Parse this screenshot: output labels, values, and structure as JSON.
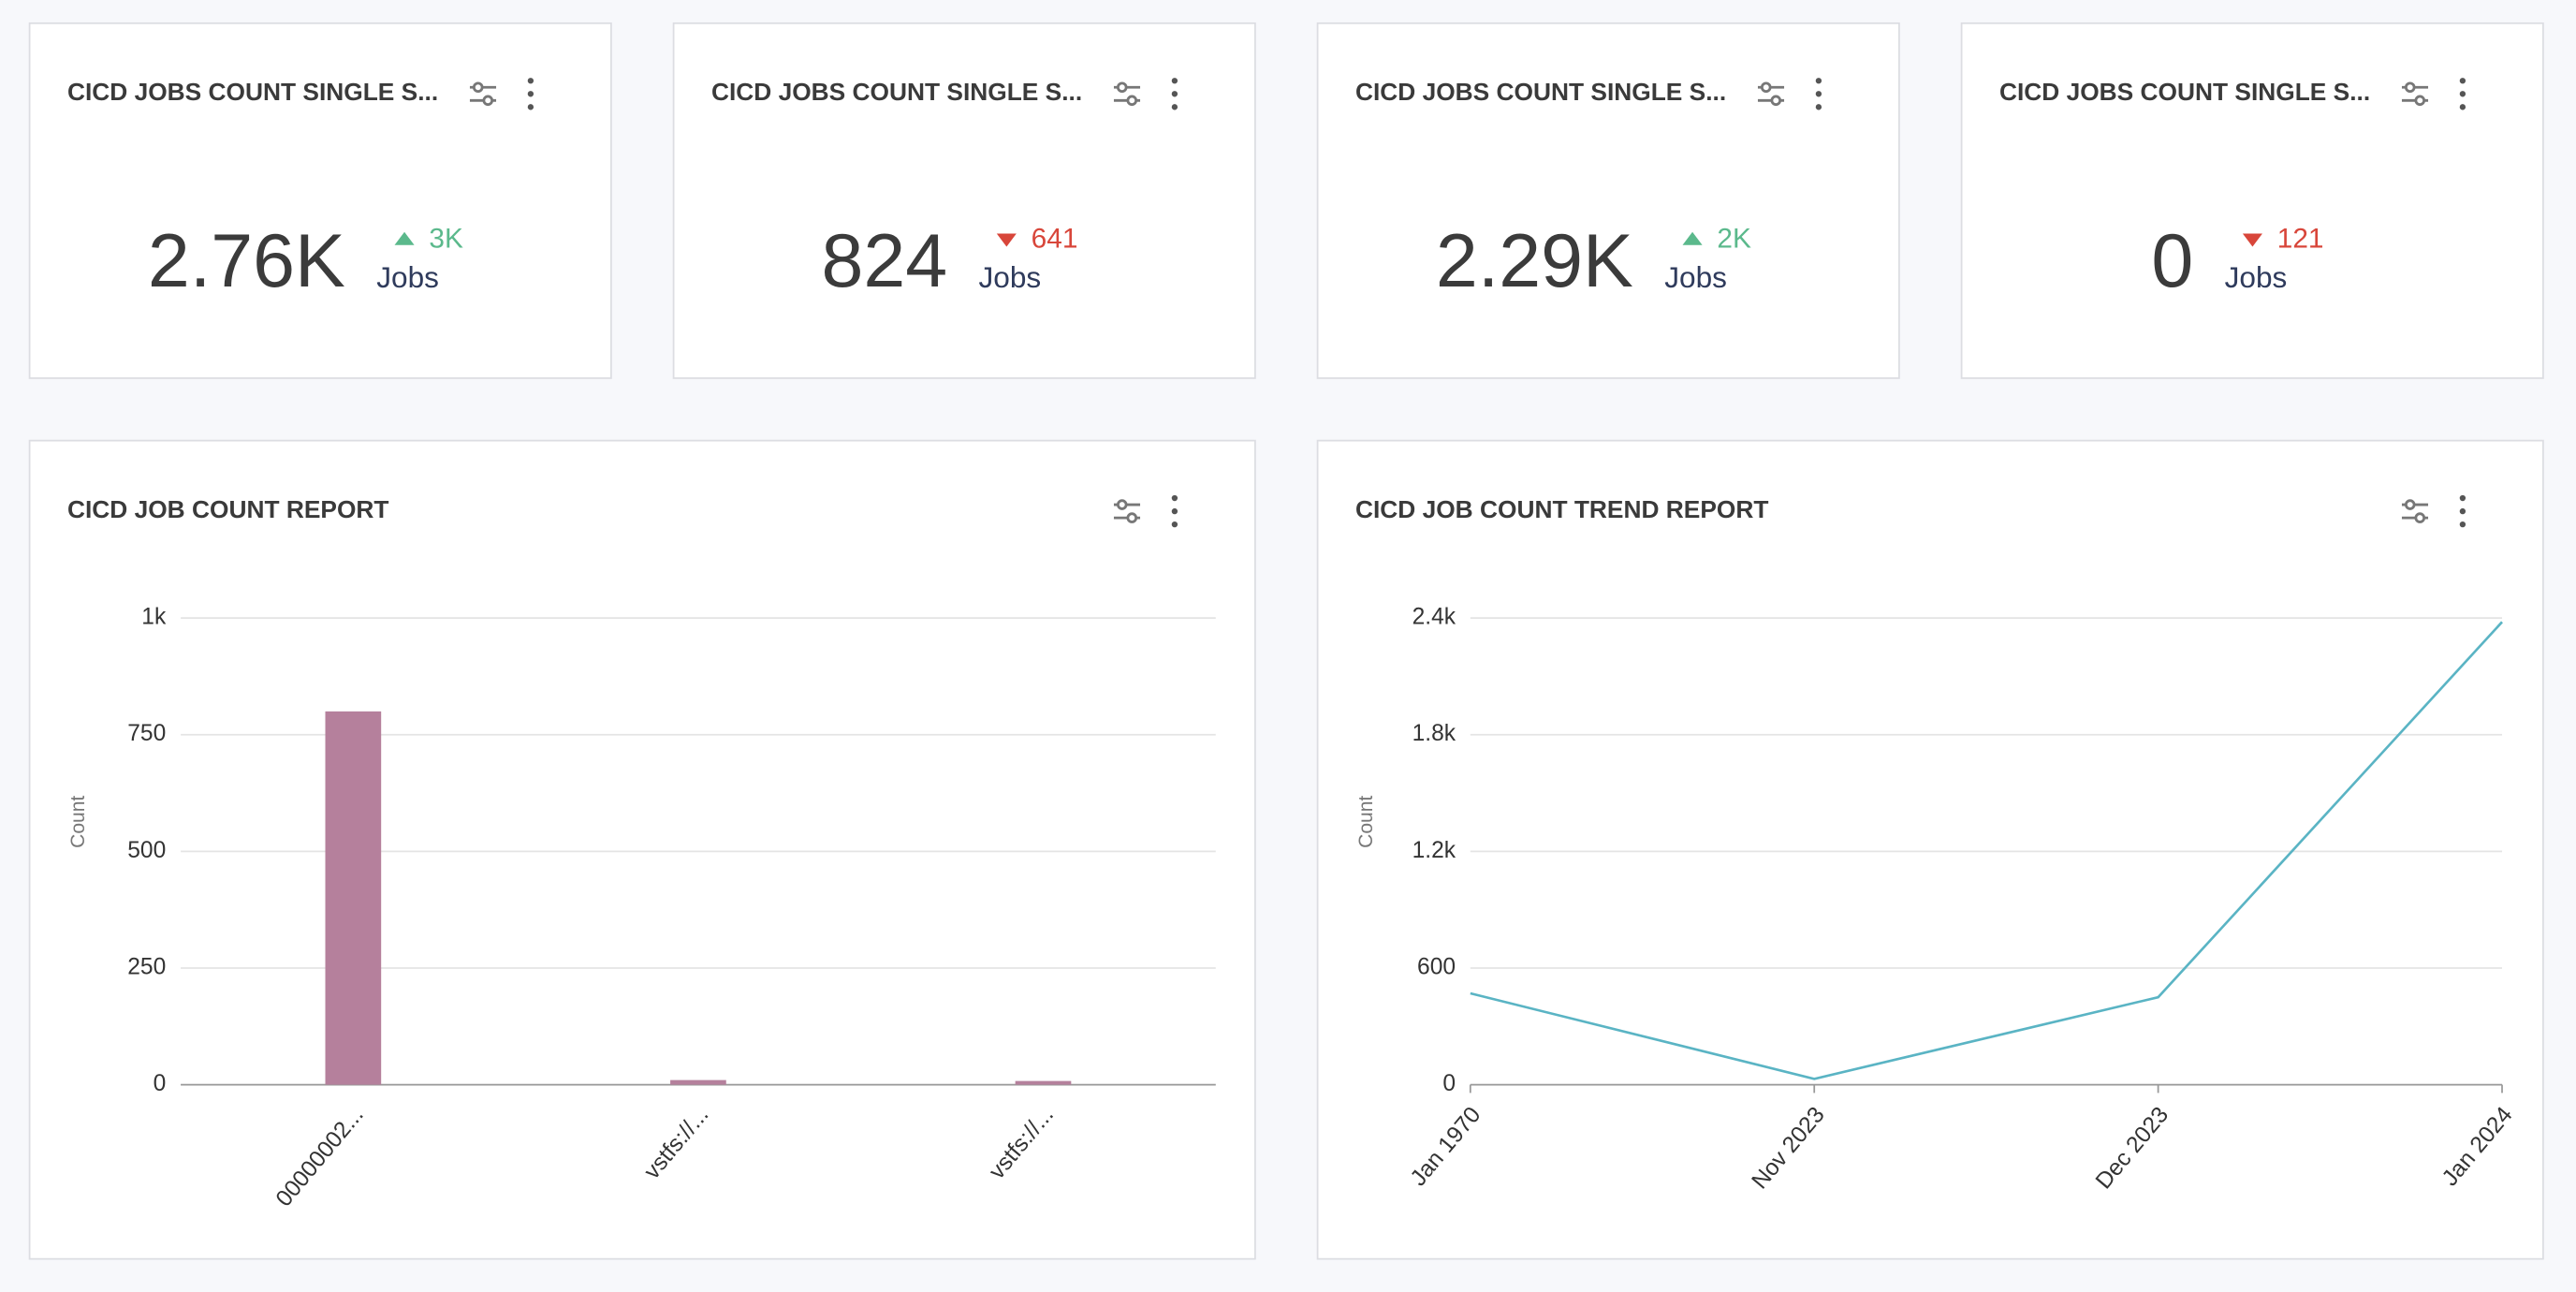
{
  "stat_cards": [
    {
      "title": "CICD JOBS COUNT SINGLE S...",
      "value": "2.76K",
      "delta": "3K",
      "trend": "up",
      "unit": "Jobs"
    },
    {
      "title": "CICD JOBS COUNT SINGLE S...",
      "value": "824",
      "delta": "641",
      "trend": "down",
      "unit": "Jobs"
    },
    {
      "title": "CICD JOBS COUNT SINGLE S...",
      "value": "2.29K",
      "delta": "2K",
      "trend": "up",
      "unit": "Jobs"
    },
    {
      "title": "CICD JOBS COUNT SINGLE S...",
      "value": "0",
      "delta": "121",
      "trend": "down",
      "unit": "Jobs"
    }
  ],
  "trend_colors": {
    "up": "#5bb98c",
    "down": "#d8463a"
  },
  "chart_data": [
    {
      "type": "bar",
      "title": "CICD JOB COUNT REPORT",
      "y_label": "Count",
      "categories": [
        "00000002...",
        "vstfs://...",
        "vstfs://..."
      ],
      "values": [
        800,
        10,
        8
      ],
      "color": "#b5809c",
      "ylim": [
        0,
        1000
      ],
      "yticks": [
        0,
        250,
        500,
        750,
        {
          "value": 1000,
          "label": "1k"
        }
      ],
      "grid": true
    },
    {
      "type": "line",
      "title": "CICD JOB COUNT TREND REPORT",
      "y_label": "Count",
      "categories": [
        "Jan 1970",
        "Nov 2023",
        "Dec 2023",
        "Jan 2024"
      ],
      "values": [
        470,
        30,
        450,
        2380
      ],
      "color": "#5ab4c4",
      "ylim": [
        0,
        2400
      ],
      "yticks": [
        0,
        600,
        {
          "value": 1200,
          "label": "1.2k"
        },
        {
          "value": 1800,
          "label": "1.8k"
        },
        {
          "value": 2400,
          "label": "2.4k"
        }
      ],
      "grid": true
    }
  ]
}
